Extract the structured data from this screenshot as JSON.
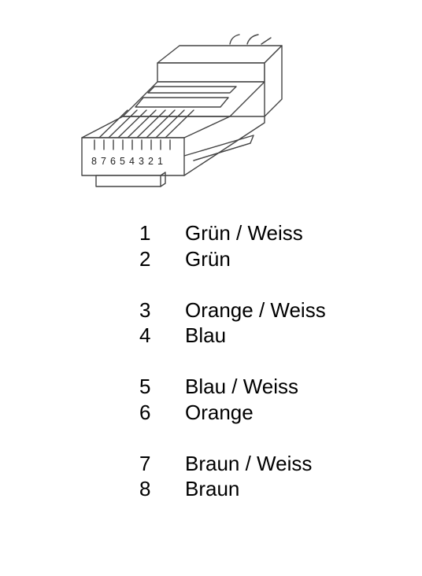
{
  "connector": {
    "pin_labels": [
      "8",
      "7",
      "6",
      "5",
      "4",
      "3",
      "2",
      "1"
    ]
  },
  "pinout": [
    {
      "pin": "1",
      "color": "Grün / Weiss"
    },
    {
      "pin": "2",
      "color": "Grün"
    },
    {
      "pin": "3",
      "color": "Orange / Weiss"
    },
    {
      "pin": "4",
      "color": "Blau"
    },
    {
      "pin": "5",
      "color": "Blau / Weiss"
    },
    {
      "pin": "6",
      "color": "Orange"
    },
    {
      "pin": "7",
      "color": "Braun / Weiss"
    },
    {
      "pin": "8",
      "color": "Braun"
    }
  ]
}
